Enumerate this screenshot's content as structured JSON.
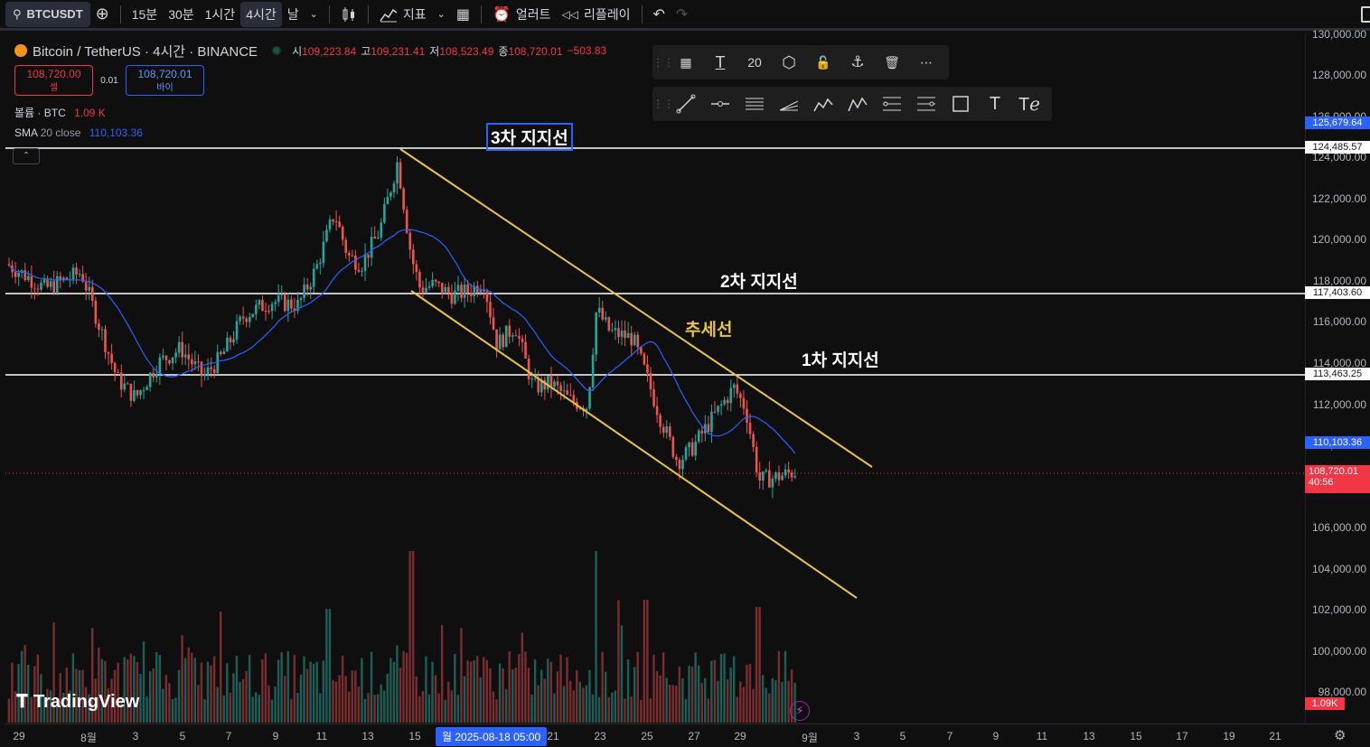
{
  "toolbar": {
    "symbol": "BTCUSDT",
    "intervals": [
      "15분",
      "30분",
      "1시간",
      "4시간",
      "날"
    ],
    "indicators_label": "지표",
    "alerts_label": "얼러트",
    "replay_label": "리플레이"
  },
  "legend": {
    "title": "Bitcoin / TetherUS · 4시간 · BINANCE",
    "open_label": "시",
    "open": "109,223.84",
    "high_label": "고",
    "high": "109,231.41",
    "low_label": "저",
    "low": "108,523.49",
    "close_label": "종",
    "close": "108,720.01",
    "change": "−503.83",
    "sell_price": "108,720.00",
    "sell_label": "셀",
    "spread": "0.01",
    "buy_price": "108,720.01",
    "buy_label": "바이",
    "volume_label": "볼륨 · BTC",
    "volume_value": "1.09 K",
    "sma_label": "SMA",
    "sma_params": "20 close",
    "sma_value": "110,103.36"
  },
  "draw_toolbar": {
    "font_size": "20"
  },
  "annotations": {
    "third": "3차 지지선",
    "second": "2차 지지선",
    "first": "1차 지지선",
    "trend": "추세선"
  },
  "price_scale": {
    "ticks": [
      "130,000.00",
      "128,000.00",
      "126,000.00",
      "124,000.00",
      "122,000.00",
      "120,000.00",
      "118,000.00",
      "116,000.00",
      "114,000.00",
      "112,000.00",
      "110,000.00",
      "106,000.00",
      "104,000.00",
      "102,000.00",
      "100,000.00",
      "98,000.00"
    ],
    "tag_high": "125,679.64",
    "tag_line3": "124,485.57",
    "tag_line2": "117,403.60",
    "tag_line1": "113,463.25",
    "tag_sma": "110,103.36",
    "tag_last": "108,720.01",
    "tag_countdown": "40:56",
    "tag_volume": "1.09K"
  },
  "time_scale": {
    "labels": [
      "29",
      "8월",
      "3",
      "5",
      "7",
      "9",
      "11",
      "13",
      "15",
      "21",
      "23",
      "25",
      "27",
      "29",
      "9월",
      "3",
      "5",
      "7",
      "9",
      "11",
      "13",
      "15",
      "17",
      "19",
      "21"
    ],
    "crosshair": "월 2025-08-18   05:00"
  },
  "brand": "TradingView",
  "colors": {
    "up": "#26a69a",
    "down": "#ef5350",
    "sma": "#2962ff",
    "trend": "#e8c547",
    "line": "#ffffff"
  }
}
